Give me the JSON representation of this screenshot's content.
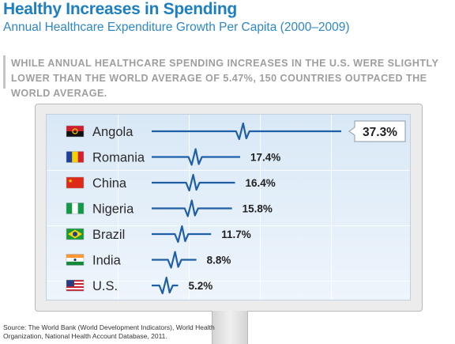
{
  "header": {
    "title": "Healthy Increases in Spending",
    "subtitle": "Annual Healthcare Expenditure Growth Per Capita (2000–2009)"
  },
  "note": "WHILE ANNUAL HEALTHCARE SPENDING INCREASES IN THE U.S. WERE SLIGHTLY LOWER THAN THE WORLD AVERAGE OF 5.47%, 150 COUNTRIES OUTPACED THE WORLD AVERAGE.",
  "source": "Source: The World Bank (World Development Indicators), World Health Organization, National Health Account Database, 2011.",
  "colors": {
    "accent": "#1e7fc0",
    "line": "#1f5fa8",
    "label": "#2b2b2b",
    "value": "#222222"
  },
  "chart_data": {
    "type": "bar",
    "orientation": "horizontal",
    "style": "heartbeat-line",
    "categories": [
      "Angola",
      "Romania",
      "China",
      "Nigeria",
      "Brazil",
      "India",
      "U.S."
    ],
    "values": [
      37.3,
      17.4,
      16.4,
      15.8,
      11.7,
      8.8,
      5.2
    ],
    "value_labels": [
      "37.3%",
      "17.4%",
      "16.4%",
      "15.8%",
      "11.7%",
      "8.8%",
      "5.2%"
    ],
    "icons": [
      "flag-angola",
      "flag-romania",
      "flag-china",
      "flag-nigeria",
      "flag-brazil",
      "flag-india",
      "flag-us"
    ],
    "highlight": "Angola",
    "unit": "%",
    "xlim": [
      0,
      37.3
    ],
    "grid": true
  }
}
